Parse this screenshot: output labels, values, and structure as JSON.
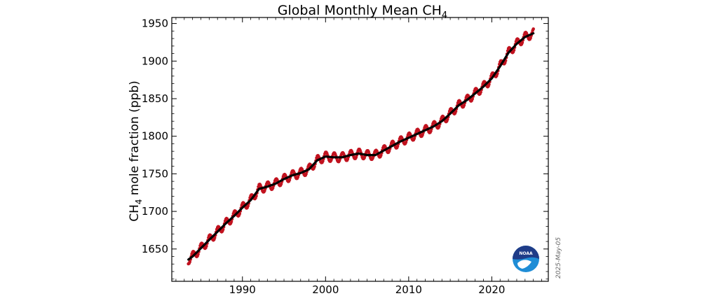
{
  "chart_data": {
    "type": "line",
    "title": "Global Monthly Mean CH",
    "title_subscript": "4",
    "ylabel_prefix": "CH",
    "ylabel_subscript": "4",
    "ylabel_suffix": " mole fraction (ppb)",
    "xlim": [
      1981.5,
      2026.8
    ],
    "ylim": [
      1607,
      1958
    ],
    "x_ticks": [
      1990,
      2000,
      2010,
      2020
    ],
    "y_ticks": [
      1650,
      1700,
      1750,
      1800,
      1850,
      1900,
      1950
    ],
    "grid": false,
    "series": [
      {
        "kind": "monthly",
        "color": "#c1121f",
        "start_year": 1983.5,
        "end_year": 2025.0
      },
      {
        "kind": "trend",
        "color": "#000000",
        "x": [
          1983.5,
          1984,
          1985,
          1986,
          1987,
          1988,
          1989,
          1990,
          1991,
          1992,
          1993,
          1994,
          1995,
          1996,
          1997,
          1998,
          1999,
          2000,
          2001,
          2002,
          2003,
          2004,
          2005,
          2006,
          2007,
          2008,
          2009,
          2010,
          2011,
          2012,
          2013,
          2014,
          2015,
          2016,
          2017,
          2018,
          2019,
          2020,
          2021,
          2022,
          2023,
          2024,
          2025
        ],
        "y": [
          1636,
          1640,
          1651,
          1662,
          1673,
          1684,
          1694,
          1705,
          1715,
          1730,
          1733,
          1737,
          1743,
          1748,
          1751,
          1756,
          1768,
          1773,
          1772,
          1772,
          1775,
          1777,
          1775,
          1775,
          1781,
          1787,
          1793,
          1798,
          1803,
          1808,
          1813,
          1820,
          1830,
          1841,
          1848,
          1857,
          1866,
          1877,
          1893,
          1911,
          1923,
          1932,
          1937
        ]
      }
    ]
  },
  "watermark": {
    "date_stamp": "2025-May-05",
    "logo_text": "NOAA"
  }
}
